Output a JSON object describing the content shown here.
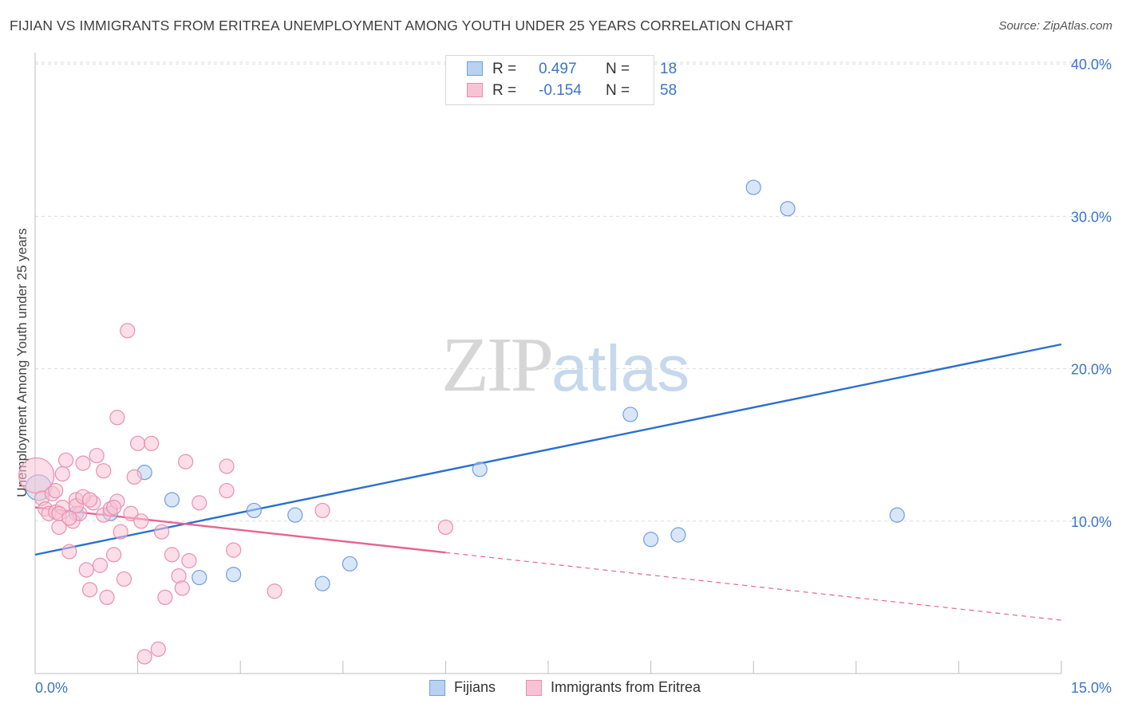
{
  "title": "FIJIAN VS IMMIGRANTS FROM ERITREA UNEMPLOYMENT AMONG YOUTH UNDER 25 YEARS CORRELATION CHART",
  "source": "Source: ZipAtlas.com",
  "watermark": {
    "zip": "ZIP",
    "atlas": "atlas"
  },
  "legend": {
    "r_label": "R =",
    "n_label": "N =",
    "rows": [
      {
        "r": "0.497",
        "n": "18"
      },
      {
        "r": "-0.154",
        "n": "58"
      }
    ]
  },
  "colors": {
    "blue_fill": "#b9d2f1",
    "blue_stroke": "#6f9fdd",
    "blue_line": "#2a6fcf",
    "pink_fill": "#f7c3d4",
    "pink_stroke": "#ea8fae",
    "pink_line": "#e8638f",
    "grid": "#dcdcdc",
    "axis_text": "#3b75c9"
  },
  "chart_data": {
    "type": "scatter",
    "title": "FIJIAN VS IMMIGRANTS FROM ERITREA UNEMPLOYMENT AMONG YOUTH UNDER 25 YEARS CORRELATION CHART",
    "xlabel": "",
    "ylabel": "Unemployment Among Youth under 25 years",
    "xlim": [
      0,
      15
    ],
    "ylim": [
      0,
      41
    ],
    "x_tick_labels": [
      "0.0%",
      "15.0%"
    ],
    "y_ticks": [
      10,
      20,
      30,
      40
    ],
    "y_tick_labels": [
      "10.0%",
      "20.0%",
      "30.0%",
      "40.0%"
    ],
    "grid": true,
    "series": [
      {
        "name": "Fijians",
        "color": "blue",
        "r": 0.497,
        "n": 18,
        "points": [
          [
            0.05,
            12.2
          ],
          [
            0.6,
            10.5
          ],
          [
            1.1,
            10.5
          ],
          [
            1.6,
            13.2
          ],
          [
            2.0,
            11.4
          ],
          [
            2.4,
            6.3
          ],
          [
            2.9,
            6.5
          ],
          [
            3.2,
            10.7
          ],
          [
            3.8,
            10.4
          ],
          [
            4.2,
            5.9
          ],
          [
            4.6,
            7.2
          ],
          [
            6.5,
            13.4
          ],
          [
            8.7,
            17.0
          ],
          [
            9.0,
            8.8
          ],
          [
            9.4,
            9.1
          ],
          [
            10.5,
            31.9
          ],
          [
            11.0,
            30.5
          ],
          [
            12.6,
            10.4
          ]
        ],
        "trend": {
          "x": [
            0,
            15
          ],
          "y": [
            7.8,
            21.6
          ],
          "dash_from": null
        }
      },
      {
        "name": "Immigrants from Eritrea",
        "color": "pink",
        "r": -0.154,
        "n": 58,
        "points": [
          [
            0.02,
            13.0
          ],
          [
            0.1,
            11.5
          ],
          [
            0.15,
            10.8
          ],
          [
            0.2,
            10.5
          ],
          [
            0.25,
            11.8
          ],
          [
            0.3,
            10.6
          ],
          [
            0.35,
            9.6
          ],
          [
            0.4,
            13.1
          ],
          [
            0.45,
            14.0
          ],
          [
            0.5,
            8.0
          ],
          [
            0.55,
            10.0
          ],
          [
            0.6,
            11.4
          ],
          [
            0.65,
            10.5
          ],
          [
            0.7,
            13.8
          ],
          [
            0.75,
            6.8
          ],
          [
            0.8,
            5.5
          ],
          [
            0.85,
            11.2
          ],
          [
            0.9,
            14.3
          ],
          [
            0.95,
            7.1
          ],
          [
            1.0,
            10.4
          ],
          [
            1.05,
            5.0
          ],
          [
            1.1,
            10.8
          ],
          [
            1.15,
            7.8
          ],
          [
            1.2,
            11.3
          ],
          [
            1.25,
            9.3
          ],
          [
            1.3,
            6.2
          ],
          [
            1.35,
            22.5
          ],
          [
            1.4,
            10.5
          ],
          [
            1.45,
            12.9
          ],
          [
            1.5,
            15.1
          ],
          [
            1.55,
            10.0
          ],
          [
            1.6,
            1.1
          ],
          [
            1.8,
            1.6
          ],
          [
            1.85,
            9.3
          ],
          [
            1.9,
            5.0
          ],
          [
            2.0,
            7.8
          ],
          [
            2.1,
            6.4
          ],
          [
            2.15,
            5.6
          ],
          [
            2.2,
            13.9
          ],
          [
            2.25,
            7.4
          ],
          [
            2.4,
            11.2
          ],
          [
            2.8,
            13.6
          ],
          [
            2.9,
            8.1
          ],
          [
            3.5,
            5.4
          ],
          [
            4.2,
            10.7
          ],
          [
            6.0,
            9.6
          ],
          [
            1.2,
            16.8
          ],
          [
            1.7,
            15.1
          ],
          [
            0.3,
            12.0
          ],
          [
            0.4,
            10.9
          ],
          [
            0.6,
            11.0
          ],
          [
            0.7,
            11.6
          ],
          [
            2.8,
            12.0
          ],
          [
            0.35,
            10.5
          ],
          [
            1.0,
            13.3
          ],
          [
            0.8,
            11.4
          ],
          [
            0.5,
            10.2
          ],
          [
            1.15,
            10.9
          ]
        ],
        "trend": {
          "x": [
            0,
            15
          ],
          "y": [
            10.9,
            3.5
          ],
          "dash_from": 6.0
        }
      }
    ]
  },
  "bottom_legend": [
    "Fijians",
    "Immigrants from Eritrea"
  ]
}
